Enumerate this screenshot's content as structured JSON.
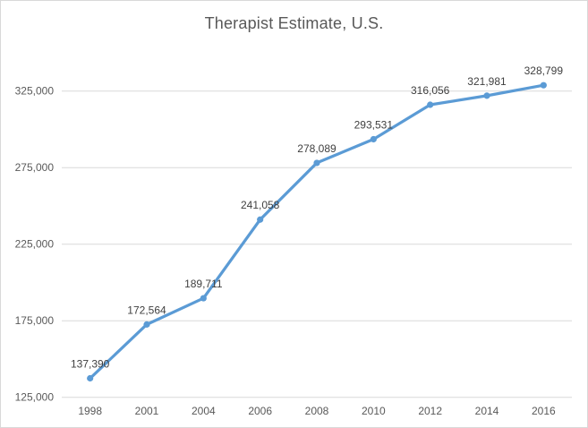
{
  "window": {
    "background": "#ffffff",
    "border_color": "#d9d9d9"
  },
  "chart_data": {
    "type": "line",
    "title": "Therapist Estimate, U.S.",
    "categories": [
      "1998",
      "2001",
      "2004",
      "2006",
      "2008",
      "2010",
      "2012",
      "2014",
      "2016"
    ],
    "values": [
      137390,
      172564,
      189711,
      241058,
      278089,
      293531,
      316056,
      321981,
      328799
    ],
    "data_labels": [
      "137,390",
      "172,564",
      "189,711",
      "241,058",
      "278,089",
      "293,531",
      "316,056",
      "321,981",
      "328,799"
    ],
    "xlabel": "",
    "ylabel": "",
    "y_ticks": [
      125000,
      175000,
      225000,
      275000,
      325000
    ],
    "y_tick_labels": [
      "125,000",
      "175,000",
      "225,000",
      "275,000",
      "325,000"
    ],
    "ylim": [
      125000,
      341000
    ],
    "grid": "horizontal",
    "legend": "none",
    "data_label_position": "above",
    "marker": "circle",
    "colors": {
      "line": "#5b9bd5",
      "marker": "#5b9bd5",
      "gridline": "#d9d9d9",
      "axis_line": "#d9d9d9",
      "axis_text": "#595959",
      "data_label_text": "#3f3f3f",
      "title_text": "#595959"
    }
  }
}
